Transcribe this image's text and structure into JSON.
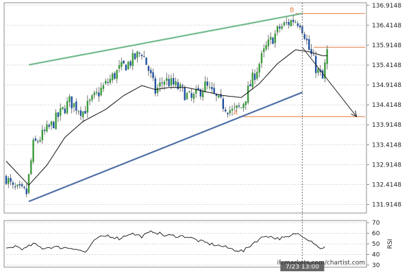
{
  "chart_data": {
    "type": "candlestick",
    "price_axis": {
      "min": 131.7,
      "max": 136.98,
      "ticks": [
        "136.9148",
        "136.4148",
        "135.9148",
        "135.4148",
        "134.9148",
        "134.4148",
        "133.9148",
        "133.4148",
        "132.9148",
        "132.4148",
        "131.9148"
      ],
      "tick_values": [
        136.9148,
        136.4148,
        135.9148,
        135.4148,
        134.9148,
        134.4148,
        133.9148,
        133.4148,
        132.9148,
        132.4148,
        131.9148
      ]
    },
    "rsi_axis": {
      "label": "RSI",
      "min": 28,
      "max": 72,
      "ticks": [
        "70",
        "60",
        "50",
        "40",
        "30"
      ],
      "tick_values": [
        70,
        60,
        50,
        40,
        30
      ]
    },
    "time_marker": {
      "label": "7/23 13:00",
      "bar_index": 131
    },
    "levels": [
      {
        "label": "B",
        "value": 136.71,
        "from_bar": 128
      },
      {
        "label": "",
        "value": 135.86,
        "from_bar": 136
      },
      {
        "label": "A",
        "value": 134.12,
        "from_bar": 103
      }
    ],
    "trendlines": [
      {
        "name": "upper",
        "color": "#72bb8f",
        "from": [
          10,
          135.42
        ],
        "to": [
          131,
          136.71
        ]
      },
      {
        "name": "lower",
        "color": "#4f6fa8",
        "from": [
          10,
          131.99
        ],
        "to": [
          131,
          134.73
        ]
      }
    ],
    "forecast_arrow": {
      "from": [
        131,
        135.86
      ],
      "to": [
        155,
        134.12
      ]
    },
    "close_start": 132.6,
    "waypoints": [
      [
        0,
        132.6
      ],
      [
        3,
        132.3
      ],
      [
        9,
        132.2
      ],
      [
        12,
        133.4
      ],
      [
        20,
        133.9
      ],
      [
        28,
        134.5
      ],
      [
        34,
        134.25
      ],
      [
        42,
        134.8
      ],
      [
        50,
        135.3
      ],
      [
        55,
        135.5
      ],
      [
        60,
        135.75
      ],
      [
        63,
        135.3
      ],
      [
        66,
        134.75
      ],
      [
        70,
        135.05
      ],
      [
        76,
        134.85
      ],
      [
        82,
        134.55
      ],
      [
        88,
        134.9
      ],
      [
        94,
        134.5
      ],
      [
        100,
        134.25
      ],
      [
        104,
        134.35
      ],
      [
        110,
        135.2
      ],
      [
        115,
        135.85
      ],
      [
        121,
        136.35
      ],
      [
        127,
        136.55
      ],
      [
        130,
        136.5
      ],
      [
        132,
        136.2
      ],
      [
        134,
        135.8
      ],
      [
        137,
        135.35
      ],
      [
        140,
        135.05
      ],
      [
        142,
        135.75
      ]
    ],
    "ma_waypoints": [
      [
        0,
        133.0
      ],
      [
        10,
        132.4
      ],
      [
        18,
        132.9
      ],
      [
        26,
        133.6
      ],
      [
        34,
        134.0
      ],
      [
        44,
        134.3
      ],
      [
        52,
        134.65
      ],
      [
        60,
        134.9
      ],
      [
        66,
        134.8
      ],
      [
        72,
        134.85
      ],
      [
        80,
        134.85
      ],
      [
        88,
        134.75
      ],
      [
        96,
        134.65
      ],
      [
        104,
        134.6
      ],
      [
        112,
        134.95
      ],
      [
        120,
        135.45
      ],
      [
        128,
        135.8
      ],
      [
        134,
        135.75
      ],
      [
        140,
        135.65
      ],
      [
        142,
        135.65
      ]
    ],
    "rsi_waypoints": [
      [
        0,
        45
      ],
      [
        4,
        48
      ],
      [
        8,
        45
      ],
      [
        12,
        50
      ],
      [
        16,
        46
      ],
      [
        20,
        47
      ],
      [
        30,
        46
      ],
      [
        35,
        42
      ],
      [
        40,
        55
      ],
      [
        45,
        58
      ],
      [
        50,
        55
      ],
      [
        55,
        60
      ],
      [
        60,
        57
      ],
      [
        65,
        62
      ],
      [
        70,
        58
      ],
      [
        80,
        57
      ],
      [
        85,
        53
      ],
      [
        90,
        50
      ],
      [
        95,
        48
      ],
      [
        100,
        45
      ],
      [
        105,
        43
      ],
      [
        110,
        52
      ],
      [
        115,
        58
      ],
      [
        120,
        55
      ],
      [
        125,
        56
      ],
      [
        128,
        60
      ],
      [
        131,
        58
      ],
      [
        134,
        54
      ],
      [
        137,
        50
      ],
      [
        139,
        45
      ],
      [
        141,
        48
      ]
    ],
    "colors": {
      "up": "#3a9a3a",
      "down": "#1f4fa0",
      "ma": "#111111",
      "level": "#e8793a",
      "arrow": "#222222"
    }
  },
  "watermark": "ifcmarkets.com/chartist.com"
}
